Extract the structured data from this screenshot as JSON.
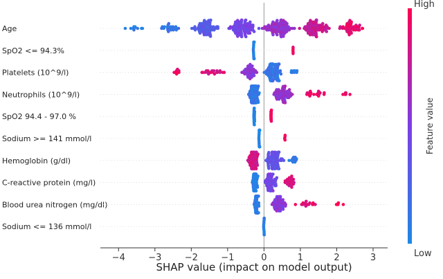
{
  "chart_data": {
    "type": "scatter",
    "subtype": "shap-beeswarm",
    "xlabel": "SHAP value (impact on model output)",
    "xlim": [
      -4.5,
      3.4
    ],
    "x_ticks": [
      -4,
      -3,
      -2,
      -1,
      0,
      1,
      2,
      3
    ],
    "grid": false,
    "colorbar": {
      "label": "Feature value",
      "high_label": "High",
      "low_label": "Low",
      "low_color": "#1e88e5",
      "high_color": "#ff0052"
    },
    "features": [
      {
        "name": "Age",
        "min": -4.2,
        "max": 3.1,
        "clusters": [
          {
            "center": -3.6,
            "spread": 0.5,
            "n": 10,
            "color": 0.05
          },
          {
            "center": -2.6,
            "spread": 0.45,
            "n": 20,
            "color": 0.12
          },
          {
            "center": -1.6,
            "spread": 0.5,
            "n": 70,
            "color": 0.3
          },
          {
            "center": -0.6,
            "spread": 0.5,
            "n": 90,
            "color": 0.45
          },
          {
            "center": 0.4,
            "spread": 0.5,
            "n": 90,
            "color": 0.6
          },
          {
            "center": 1.4,
            "spread": 0.5,
            "n": 80,
            "color": 0.78
          },
          {
            "center": 2.4,
            "spread": 0.45,
            "n": 45,
            "color": 0.9
          }
        ]
      },
      {
        "name": "SpO2 <= 94.3%",
        "min": -0.3,
        "max": 0.8,
        "clusters": [
          {
            "center": -0.28,
            "spread": 0.02,
            "n": 20,
            "color": 0.02
          },
          {
            "center": 0.8,
            "spread": 0.02,
            "n": 5,
            "color": 0.98
          }
        ]
      },
      {
        "name": "Platelets (10^9/l)",
        "min": -2.75,
        "max": 1.0,
        "clusters": [
          {
            "center": -2.4,
            "spread": 0.3,
            "n": 7,
            "color": 0.95
          },
          {
            "center": -1.4,
            "spread": 0.5,
            "n": 20,
            "color": 0.85
          },
          {
            "center": -0.4,
            "spread": 0.3,
            "n": 40,
            "color": 0.55
          },
          {
            "center": 0.25,
            "spread": 0.3,
            "n": 90,
            "color": 0.12
          },
          {
            "center": 0.8,
            "spread": 0.2,
            "n": 8,
            "color": 0.05
          }
        ]
      },
      {
        "name": "Neutrophils (10^9/l)",
        "min": -0.55,
        "max": 2.95,
        "clusters": [
          {
            "center": -0.3,
            "spread": 0.2,
            "n": 90,
            "color": 0.12
          },
          {
            "center": 0.5,
            "spread": 0.4,
            "n": 60,
            "color": 0.6
          },
          {
            "center": 1.4,
            "spread": 0.4,
            "n": 18,
            "color": 0.92
          },
          {
            "center": 2.3,
            "spread": 0.3,
            "n": 6,
            "color": 0.98
          }
        ]
      },
      {
        "name": "SpO2 94.4 - 97.0 %",
        "min": -0.28,
        "max": 0.22,
        "clusters": [
          {
            "center": -0.27,
            "spread": 0.02,
            "n": 20,
            "color": 0.02
          },
          {
            "center": 0.2,
            "spread": 0.02,
            "n": 14,
            "color": 0.98
          }
        ]
      },
      {
        "name": "Sodium >= 141 mmol/l",
        "min": -0.15,
        "max": 0.6,
        "clusters": [
          {
            "center": -0.13,
            "spread": 0.02,
            "n": 25,
            "color": 0.02
          },
          {
            "center": 0.58,
            "spread": 0.02,
            "n": 4,
            "color": 0.98
          }
        ]
      },
      {
        "name": "Hemoglobin (g/dl)",
        "min": -0.55,
        "max": 0.95,
        "clusters": [
          {
            "center": -0.3,
            "spread": 0.2,
            "n": 70,
            "color": 0.82
          },
          {
            "center": 0.3,
            "spread": 0.3,
            "n": 80,
            "color": 0.35
          },
          {
            "center": 0.8,
            "spread": 0.15,
            "n": 12,
            "color": 0.1
          }
        ]
      },
      {
        "name": "C-reactive protein (mg/l)",
        "min": -0.35,
        "max": 1.05,
        "clusters": [
          {
            "center": -0.25,
            "spread": 0.1,
            "n": 60,
            "color": 0.05
          },
          {
            "center": 0.2,
            "spread": 0.25,
            "n": 60,
            "color": 0.45
          },
          {
            "center": 0.7,
            "spread": 0.25,
            "n": 25,
            "color": 0.85
          }
        ]
      },
      {
        "name": "Blood urea nitrogen (mg/dl)",
        "min": -0.3,
        "max": 2.4,
        "clusters": [
          {
            "center": -0.2,
            "spread": 0.1,
            "n": 80,
            "color": 0.08
          },
          {
            "center": 0.4,
            "spread": 0.3,
            "n": 50,
            "color": 0.55
          },
          {
            "center": 1.2,
            "spread": 0.4,
            "n": 15,
            "color": 0.9
          },
          {
            "center": 2.1,
            "spread": 0.3,
            "n": 4,
            "color": 0.98
          }
        ]
      },
      {
        "name": "Sodium <= 136 mmol/l",
        "min": -0.02,
        "max": 0.05,
        "clusters": [
          {
            "center": 0.0,
            "spread": 0.02,
            "n": 14,
            "color": 0.05
          }
        ]
      }
    ]
  }
}
